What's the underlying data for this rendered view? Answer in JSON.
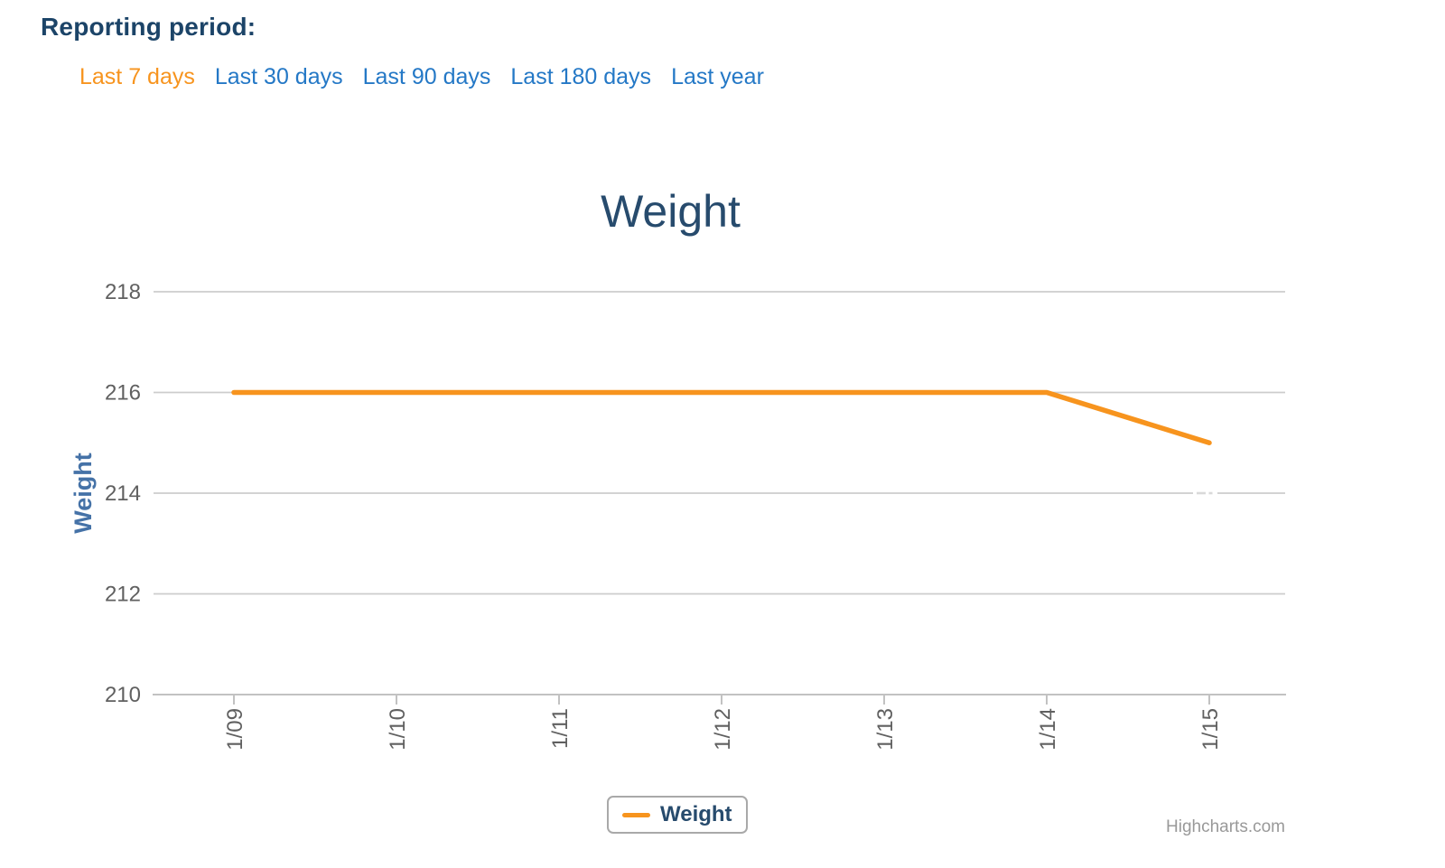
{
  "header": {
    "title": "Reporting period:",
    "links": [
      {
        "label": "Last 7 days",
        "active": true
      },
      {
        "label": "Last 30 days",
        "active": false
      },
      {
        "label": "Last 90 days",
        "active": false
      },
      {
        "label": "Last 180 days",
        "active": false
      },
      {
        "label": "Last year",
        "active": false
      }
    ]
  },
  "chart": {
    "title": "Weight",
    "y_axis_title": "Weight",
    "legend": {
      "label": "Weight"
    },
    "credits": "Highcharts.com"
  },
  "chart_data": {
    "type": "line",
    "title": "Weight",
    "categories": [
      "1/09",
      "1/10",
      "1/11",
      "1/12",
      "1/13",
      "1/14",
      "1/15"
    ],
    "series": [
      {
        "name": "Weight",
        "color": "#f7941e",
        "values": [
          216,
          216,
          216,
          216,
          216,
          216,
          215
        ]
      }
    ],
    "xlabel": "",
    "ylabel": "Weight",
    "ylim": [
      210,
      218
    ],
    "yticks": [
      210,
      212,
      214,
      216,
      218
    ],
    "grid": true,
    "legend_position": "bottom-center",
    "x_label_rotation": -90
  },
  "colors": {
    "accent_orange": "#f7941e",
    "link_blue": "#2478c6",
    "heading_navy": "#1c4468",
    "title_navy": "#274b6d",
    "axis_title_blue": "#4572a7",
    "axis_label_gray": "#606060",
    "gridline_gray": "#cdcdcd",
    "axis_line_gray": "#c2c2c2",
    "credits_gray": "#999999"
  }
}
